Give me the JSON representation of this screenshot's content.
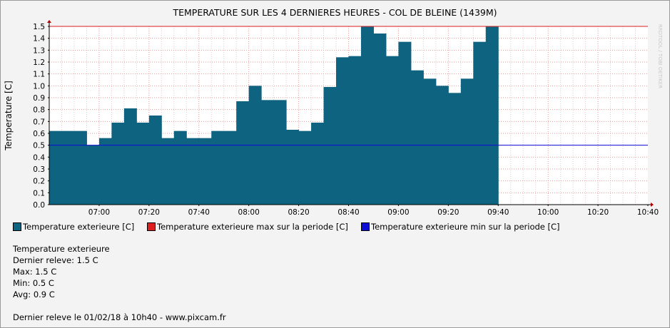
{
  "chart_data": {
    "type": "area",
    "title": "TEMPERATURE SUR LES 4 DERNIERES HEURES - COL DE BLEINE (1439M)",
    "ylabel": "Temperature [C]",
    "xlabel": "",
    "ylim": [
      0,
      1.5
    ],
    "ytick_labels": [
      "0.0",
      "0.1",
      "0.2",
      "0.3",
      "0.4",
      "0.5",
      "0.6",
      "0.7",
      "0.8",
      "0.9",
      "1.0",
      "1.1",
      "1.2",
      "1.3",
      "1.4",
      "1.5"
    ],
    "xlim": [
      "06:40",
      "10:40"
    ],
    "xtick_labels": [
      "07:00",
      "07:20",
      "07:40",
      "08:00",
      "08:20",
      "08:40",
      "09:00",
      "09:20",
      "09:40",
      "10:00",
      "10:20",
      "10:40"
    ],
    "grid": true,
    "legend_position": "bottom",
    "series": [
      {
        "name": "Temperature exterieure [C]",
        "color": "#0e6380",
        "x": [
          "06:40",
          "06:45",
          "06:50",
          "06:55",
          "07:00",
          "07:05",
          "07:10",
          "07:15",
          "07:20",
          "07:25",
          "07:30",
          "07:35",
          "07:40",
          "07:45",
          "07:50",
          "07:55",
          "08:00",
          "08:05",
          "08:10",
          "08:15",
          "08:20",
          "08:25",
          "08:30",
          "08:35",
          "08:40",
          "08:45",
          "08:50",
          "08:55",
          "09:00",
          "09:05",
          "09:10",
          "09:15",
          "09:20",
          "09:25",
          "09:30",
          "09:35"
        ],
        "values": [
          0.62,
          0.62,
          0.62,
          0.5,
          0.56,
          0.69,
          0.81,
          0.69,
          0.75,
          0.56,
          0.62,
          0.56,
          0.56,
          0.62,
          0.62,
          0.87,
          1.0,
          0.88,
          0.88,
          0.63,
          0.62,
          0.69,
          0.99,
          1.24,
          1.25,
          1.5,
          1.44,
          1.25,
          1.37,
          1.13,
          1.06,
          1.0,
          0.94,
          1.06,
          1.37,
          1.5
        ]
      },
      {
        "name": "Temperature exterieure max sur la periode [C]",
        "color": "#dd1f1f",
        "values": [
          1.5
        ]
      },
      {
        "name": "Temperature exterieure min sur la periode [C]",
        "color": "#0d0dd8",
        "values": [
          0.5
        ]
      }
    ]
  },
  "side_text": "RRDTOOL / TOBI OETIKER",
  "info": {
    "heading": "Temperature exterieure",
    "last": "Dernier releve: 1.5 C",
    "max": "Max: 1.5 C",
    "min": "Min: 0.5 C",
    "avg": "Avg: 0.9 C",
    "footer": "Dernier releve le 01/02/18 à 10h40 - www.pixcam.fr"
  }
}
